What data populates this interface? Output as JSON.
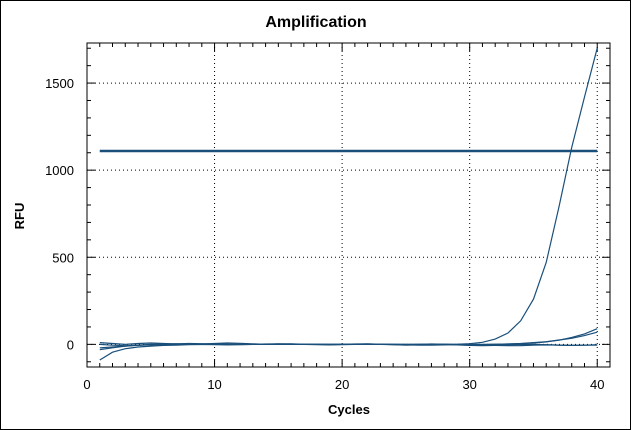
{
  "chart_data": {
    "type": "line",
    "title": "Amplification",
    "xlabel": "Cycles",
    "ylabel": "RFU",
    "xlim": [
      0,
      41
    ],
    "ylim": [
      -130,
      1730
    ],
    "xticks": [
      0,
      10,
      20,
      30,
      40
    ],
    "yticks": [
      0,
      500,
      1000,
      1500
    ],
    "grid": true,
    "line_color": "#1a4f7a",
    "threshold": {
      "value": 1110,
      "x_start": 1,
      "x_end": 40
    },
    "series": [
      {
        "x": [
          1,
          2,
          3,
          4,
          5,
          6,
          7,
          8,
          9,
          10,
          11,
          12,
          13,
          14,
          15,
          16,
          17,
          18,
          19,
          20,
          21,
          22,
          23,
          24,
          25,
          26,
          27,
          28,
          29,
          30,
          31,
          32,
          33,
          34,
          35,
          36,
          37,
          38,
          39,
          40
        ],
        "y": [
          -20,
          -15,
          -10,
          -5,
          -3,
          -2,
          0,
          0,
          0,
          0,
          0,
          0,
          0,
          0,
          0,
          0,
          0,
          0,
          0,
          0,
          0,
          0,
          0,
          0,
          0,
          0,
          0,
          0,
          1,
          4,
          12,
          30,
          65,
          135,
          260,
          470,
          790,
          1130,
          1420,
          1700
        ]
      },
      {
        "x": [
          1,
          2,
          3,
          4,
          5,
          6,
          7,
          8,
          9,
          10,
          11,
          12,
          13,
          14,
          15,
          16,
          17,
          18,
          19,
          20,
          21,
          22,
          23,
          24,
          25,
          26,
          27,
          28,
          29,
          30,
          31,
          32,
          33,
          34,
          35,
          36,
          37,
          38,
          39,
          40
        ],
        "y": [
          -90,
          -45,
          -25,
          -15,
          -10,
          -6,
          -4,
          -2,
          -1,
          0,
          0,
          0,
          0,
          0,
          0,
          0,
          0,
          0,
          0,
          0,
          0,
          0,
          0,
          0,
          0,
          0,
          0,
          0,
          0,
          0,
          0,
          1,
          2,
          4,
          8,
          14,
          24,
          40,
          60,
          90
        ]
      },
      {
        "x": [
          1,
          2,
          3,
          4,
          5,
          6,
          7,
          8,
          9,
          10,
          11,
          12,
          13,
          14,
          15,
          16,
          17,
          18,
          19,
          20,
          21,
          22,
          23,
          24,
          25,
          26,
          27,
          28,
          29,
          30,
          31,
          32,
          33,
          34,
          35,
          36,
          37,
          38,
          39,
          40
        ],
        "y": [
          10,
          5,
          0,
          5,
          8,
          5,
          2,
          0,
          2,
          5,
          8,
          6,
          3,
          0,
          2,
          3,
          1,
          0,
          -1,
          0,
          2,
          3,
          1,
          -2,
          -3,
          0,
          2,
          1,
          -2,
          -4,
          -2,
          0,
          2,
          5,
          10,
          15,
          25,
          35,
          50,
          70
        ]
      },
      {
        "x": [
          1,
          2,
          3,
          4,
          5,
          6,
          7,
          8,
          9,
          10,
          11,
          12,
          13,
          14,
          15,
          16,
          17,
          18,
          19,
          20,
          21,
          22,
          23,
          24,
          25,
          26,
          27,
          28,
          29,
          30,
          31,
          32,
          33,
          34,
          35,
          36,
          37,
          38,
          39,
          40
        ],
        "y": [
          -30,
          -20,
          -10,
          -4,
          0,
          2,
          3,
          2,
          0,
          -2,
          -3,
          -2,
          0,
          2,
          3,
          2,
          0,
          -2,
          -3,
          -2,
          0,
          1,
          0,
          -2,
          -4,
          -3,
          -1,
          0,
          -3,
          -6,
          -8,
          -6,
          -3,
          -1,
          0,
          -2,
          -4,
          -6,
          -4,
          -5
        ]
      },
      {
        "x": [
          1,
          2,
          3,
          4,
          5,
          6,
          7,
          8,
          9,
          10,
          11,
          12,
          13,
          14,
          15,
          16,
          17,
          18,
          19,
          20,
          21,
          22,
          23,
          24,
          25,
          26,
          27,
          28,
          29,
          30,
          31,
          32,
          33,
          34,
          35,
          36,
          37,
          38,
          39,
          40
        ],
        "y": [
          0,
          -5,
          -8,
          -6,
          -2,
          0,
          3,
          5,
          4,
          2,
          0,
          -1,
          0,
          1,
          2,
          1,
          0,
          0,
          -1,
          0,
          1,
          2,
          1,
          0,
          -2,
          -4,
          -5,
          -3,
          -2,
          -1,
          -3,
          -6,
          -8,
          -7,
          -5,
          -3,
          -4,
          -6,
          -5,
          -2
        ]
      }
    ]
  }
}
